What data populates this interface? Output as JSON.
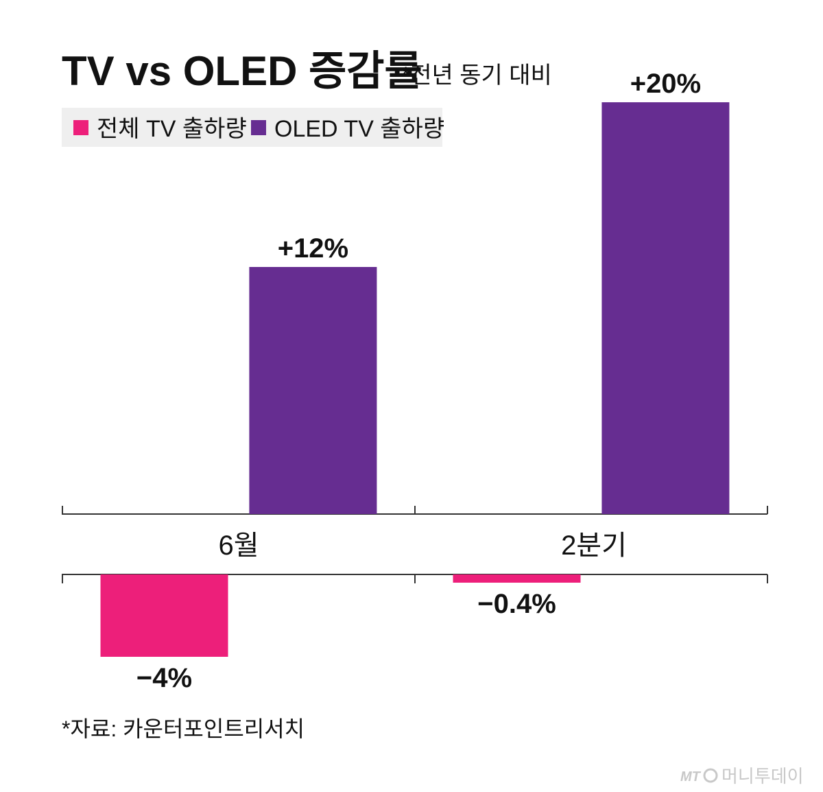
{
  "header": {
    "title": "TV vs OLED 증감률",
    "subtitle": "*전년 동기 대비"
  },
  "legend": {
    "items": [
      {
        "label": "전체 TV 출하량",
        "color": "#ed1f7a"
      },
      {
        "label": "OLED TV 출하량",
        "color": "#662d91"
      }
    ]
  },
  "chart_data": {
    "type": "bar",
    "categories": [
      "6월",
      "2분기"
    ],
    "series": [
      {
        "name": "전체 TV 출하량",
        "color": "#ed1f7a",
        "values": [
          -4,
          -0.4
        ],
        "labels": [
          "−4%",
          "−0.4%"
        ]
      },
      {
        "name": "OLED TV 출하량",
        "color": "#662d91",
        "values": [
          12,
          20
        ],
        "labels": [
          "+12%",
          "+20%"
        ]
      }
    ],
    "unit": "%",
    "grid": false,
    "legend_position": "top-left"
  },
  "footer": {
    "source": "*자료: 카운터포인트리서치",
    "brand_mark": "MT",
    "brand_name": "머니투데이"
  }
}
